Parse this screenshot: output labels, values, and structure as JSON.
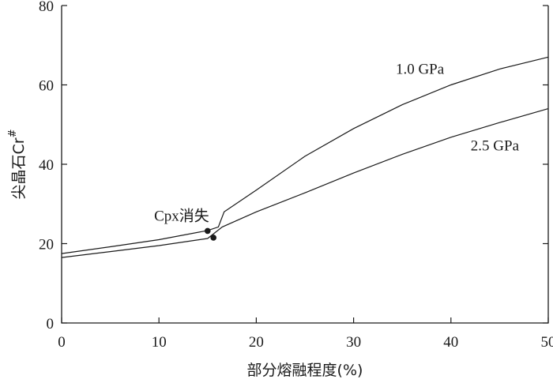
{
  "chart_data": {
    "type": "line",
    "xlabel": "部分熔融程度(%)",
    "ylabel": "尖晶石Cr",
    "ylabel_superscript": "#",
    "xlim": [
      0,
      50
    ],
    "ylim": [
      0,
      80
    ],
    "x_ticks": [
      0,
      10,
      20,
      30,
      40,
      50
    ],
    "y_ticks": [
      0,
      20,
      40,
      60,
      80
    ],
    "grid": false,
    "series": [
      {
        "name": "1.0 GPa",
        "x": [
          0,
          5,
          10,
          15,
          16.1,
          16.7,
          20,
          25,
          30,
          35,
          40,
          45,
          50
        ],
        "y": [
          17.5,
          19.2,
          21.0,
          23.3,
          24.2,
          28.0,
          33.5,
          42.0,
          49.0,
          55.0,
          60.0,
          64.0,
          67.0
        ]
      },
      {
        "name": "2.5 GPa",
        "x": [
          0,
          5,
          10,
          15,
          16.5,
          20,
          25,
          30,
          35,
          40,
          45,
          50
        ],
        "y": [
          16.5,
          18.0,
          19.5,
          21.3,
          24.2,
          28.0,
          32.8,
          37.8,
          42.5,
          46.8,
          50.5,
          54.0
        ]
      }
    ],
    "annotations": [
      {
        "label": "Cpx消失",
        "points": [
          {
            "x": 15.0,
            "y": 23.2
          },
          {
            "x": 15.6,
            "y": 21.5
          }
        ]
      }
    ]
  }
}
